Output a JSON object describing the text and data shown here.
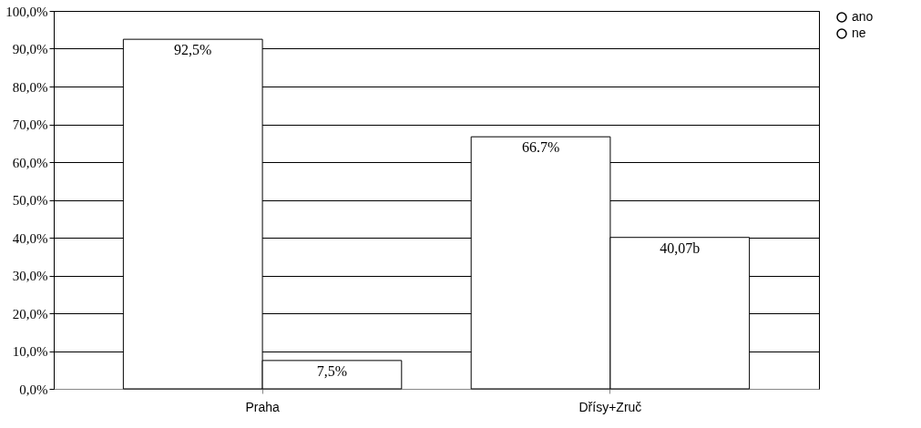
{
  "chart_data": {
    "type": "bar",
    "categories": [
      "Praha",
      "Dřísy+Zruč"
    ],
    "series": [
      {
        "name": "ano",
        "color": "#ffffff",
        "values": [
          92.5,
          66.7
        ],
        "value_labels": [
          "92,5%",
          "66.7%"
        ]
      },
      {
        "name": "ne",
        "color": "#ffffff",
        "values": [
          7.5,
          40.07
        ],
        "value_labels": [
          "7,5%",
          "40,07b"
        ]
      }
    ],
    "ylim": [
      0,
      100
    ],
    "yticks": [
      {
        "value": 0,
        "label": "0,0%"
      },
      {
        "value": 10,
        "label": "10,0%"
      },
      {
        "value": 20,
        "label": "20,0%"
      },
      {
        "value": 30,
        "label": "30,0%"
      },
      {
        "value": 40,
        "label": "40,0%"
      },
      {
        "value": 50,
        "label": "50,0%"
      },
      {
        "value": 60,
        "label": "60,0%"
      },
      {
        "value": 70,
        "label": "70,0%"
      },
      {
        "value": 80,
        "label": "80,0%"
      },
      {
        "value": 90,
        "label": "90,0%"
      },
      {
        "value": 100,
        "label": "100,0%"
      }
    ],
    "grid": "y",
    "legend": "right"
  }
}
